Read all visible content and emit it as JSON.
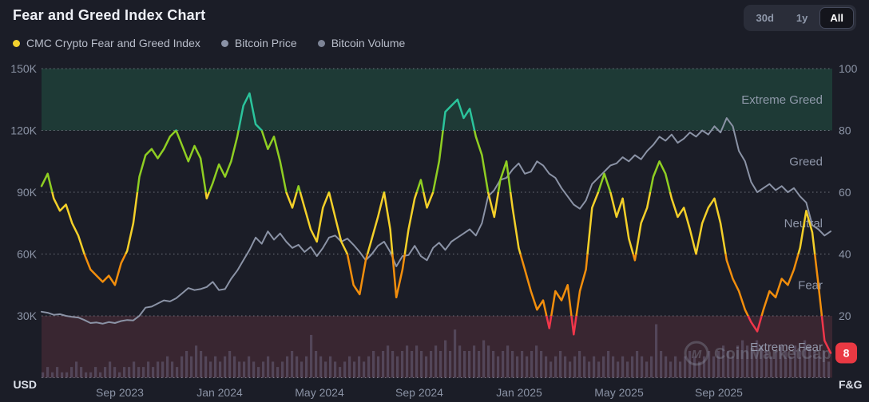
{
  "header": {
    "title": "Fear and Greed Index Chart",
    "range_buttons": [
      {
        "label": "30d",
        "active": false
      },
      {
        "label": "1y",
        "active": false
      },
      {
        "label": "All",
        "active": true
      }
    ]
  },
  "legend": {
    "items": [
      {
        "label": "CMC Crypto Fear and Greed Index",
        "color": "#f3d12e"
      },
      {
        "label": "Bitcoin Price",
        "color": "#8a92a6"
      },
      {
        "label": "Bitcoin Volume",
        "color": "#7d8496"
      }
    ]
  },
  "chart_data": {
    "type": "line",
    "title": "Fear and Greed Index Chart",
    "watermark": "CoinMarketCap",
    "left_axis": {
      "label": "USD",
      "ticks": [
        "150K",
        "120K",
        "90K",
        "60K",
        "30K"
      ],
      "tick_values_k": [
        150,
        120,
        90,
        60,
        30
      ],
      "range_k": [
        0,
        150
      ]
    },
    "right_axis": {
      "label": "F&G",
      "ticks": [
        "100",
        "80",
        "60",
        "40",
        "20"
      ],
      "tick_values": [
        100,
        80,
        60,
        40,
        20
      ],
      "range": [
        0,
        100
      ]
    },
    "x_axis": {
      "ticks": [
        "Sep 2023",
        "Jan 2024",
        "May 2024",
        "Sep 2024",
        "Jan 2025",
        "May 2025",
        "Sep 2025"
      ]
    },
    "zones": [
      {
        "label": "Extreme Greed",
        "min": 80,
        "max": 100,
        "band_color": "#1e3a36"
      },
      {
        "label": "Greed",
        "min": 60,
        "max": 80,
        "band_color": null
      },
      {
        "label": "Neutral",
        "min": 40,
        "max": 60,
        "band_color": null
      },
      {
        "label": "Fear",
        "min": 20,
        "max": 40,
        "band_color": null
      },
      {
        "label": "Extreme Fear",
        "min": 0,
        "max": 20,
        "band_color": "#392631"
      }
    ],
    "fg_palette": {
      "extreme_greed": "#2bc49c",
      "greed": "#8fce22",
      "neutral": "#f4d029",
      "fear": "#f28e0c",
      "extreme_fear": "#f0364a"
    },
    "current_value": {
      "value": "8",
      "classification": "Extreme Fear",
      "badge_color": "#ea3943"
    },
    "grid": {
      "horizontal_dotted": true,
      "vertical": false
    },
    "series": [
      {
        "name": "CMC Crypto Fear and Greed Index",
        "axis": "right",
        "style": "multicolor-line",
        "values": [
          62,
          66,
          58,
          54,
          56,
          50,
          46,
          40,
          35,
          33,
          31,
          33,
          30,
          37,
          41,
          50,
          65,
          72,
          74,
          71,
          74,
          78,
          80,
          75,
          70,
          75,
          71,
          58,
          63,
          69,
          65,
          70,
          78,
          88,
          92,
          82,
          80,
          74,
          78,
          70,
          60,
          55,
          62,
          55,
          48,
          44,
          55,
          60,
          52,
          44,
          40,
          30,
          27,
          38,
          45,
          52,
          60,
          48,
          26,
          35,
          48,
          58,
          64,
          55,
          60,
          70,
          86,
          88,
          90,
          84,
          87,
          78,
          72,
          60,
          52,
          64,
          70,
          55,
          42,
          35,
          28,
          22,
          25,
          16,
          28,
          25,
          30,
          14,
          28,
          35,
          55,
          60,
          66,
          60,
          52,
          58,
          45,
          38,
          50,
          55,
          65,
          70,
          66,
          58,
          52,
          55,
          48,
          40,
          50,
          55,
          58,
          50,
          38,
          32,
          28,
          22,
          18,
          15,
          22,
          28,
          26,
          32,
          30,
          35,
          42,
          54,
          47,
          30,
          12,
          8
        ]
      },
      {
        "name": "Bitcoin Price",
        "axis": "left",
        "unit": "K USD",
        "color": "#8b93a6",
        "style": "line",
        "values": [
          32,
          31.5,
          30.5,
          30.8,
          30,
          29.5,
          29.2,
          28,
          26.5,
          26.8,
          26.2,
          27,
          26.5,
          27.5,
          28,
          27.8,
          30,
          34,
          34.5,
          36,
          37.5,
          37,
          38.5,
          41,
          43.5,
          42.5,
          43,
          44,
          46.5,
          42.5,
          43,
          48,
          52,
          57,
          62,
          68,
          65,
          71,
          67,
          70,
          66,
          63,
          64.5,
          61,
          63.5,
          59,
          63,
          68,
          69,
          66,
          67.5,
          64.5,
          61,
          57,
          60,
          64,
          66,
          61,
          54,
          59,
          59.5,
          64,
          59,
          57,
          63,
          65.5,
          62,
          66,
          68,
          70,
          72,
          69,
          75,
          88,
          91,
          96,
          97,
          101,
          104,
          99,
          100,
          105,
          103,
          99,
          97,
          92,
          88,
          84,
          82,
          86,
          94,
          97,
          100,
          103,
          104,
          107,
          105,
          108,
          106,
          110,
          113,
          117,
          115,
          118,
          114,
          116,
          119,
          117,
          120,
          118,
          122,
          119,
          126,
          122,
          110,
          105,
          95,
          90,
          92,
          94,
          91,
          93,
          90,
          92,
          88,
          85,
          74,
          72,
          69,
          71
        ]
      },
      {
        "name": "Bitcoin Volume",
        "axis": "left",
        "color": "#584c60",
        "style": "bar",
        "scale": "relative-0-10",
        "values": [
          1,
          2,
          1,
          2,
          1,
          1,
          2,
          3,
          2,
          1,
          1,
          2,
          1,
          2,
          3,
          2,
          1,
          2,
          2,
          3,
          2,
          2,
          3,
          2,
          3,
          3,
          4,
          3,
          2,
          4,
          5,
          4,
          6,
          5,
          4,
          3,
          4,
          3,
          4,
          5,
          4,
          3,
          3,
          4,
          3,
          2,
          3,
          4,
          3,
          2,
          3,
          4,
          5,
          4,
          3,
          4,
          8,
          5,
          4,
          3,
          4,
          3,
          2,
          3,
          4,
          3,
          4,
          3,
          4,
          5,
          4,
          5,
          6,
          5,
          4,
          5,
          6,
          5,
          6,
          5,
          4,
          5,
          6,
          5,
          7,
          5,
          9,
          6,
          5,
          5,
          6,
          5,
          7,
          6,
          5,
          4,
          5,
          6,
          5,
          4,
          5,
          4,
          5,
          6,
          5,
          4,
          3,
          4,
          5,
          4,
          3,
          4,
          5,
          4,
          3,
          4,
          3,
          4,
          5,
          4,
          3,
          4,
          3,
          4,
          5,
          4,
          3,
          4,
          10,
          5,
          4,
          3,
          4,
          3,
          4,
          5,
          4,
          3,
          4,
          5,
          4,
          5,
          6,
          5,
          4,
          6,
          7,
          6,
          5,
          7,
          6,
          5,
          4,
          5,
          6,
          5,
          4,
          6,
          5,
          7,
          6,
          5,
          4,
          5,
          3
        ]
      }
    ]
  },
  "colors": {
    "background": "#1b1d27",
    "grid_dots": "#cfd3de",
    "axis_text": "#8b93a5",
    "zone_text": "#9ba3b6",
    "bold_axis_text": "#dde1ea",
    "btc_line": "#8b93a6",
    "volume_bar": "#584c60",
    "watermark": "#8f96a8"
  }
}
